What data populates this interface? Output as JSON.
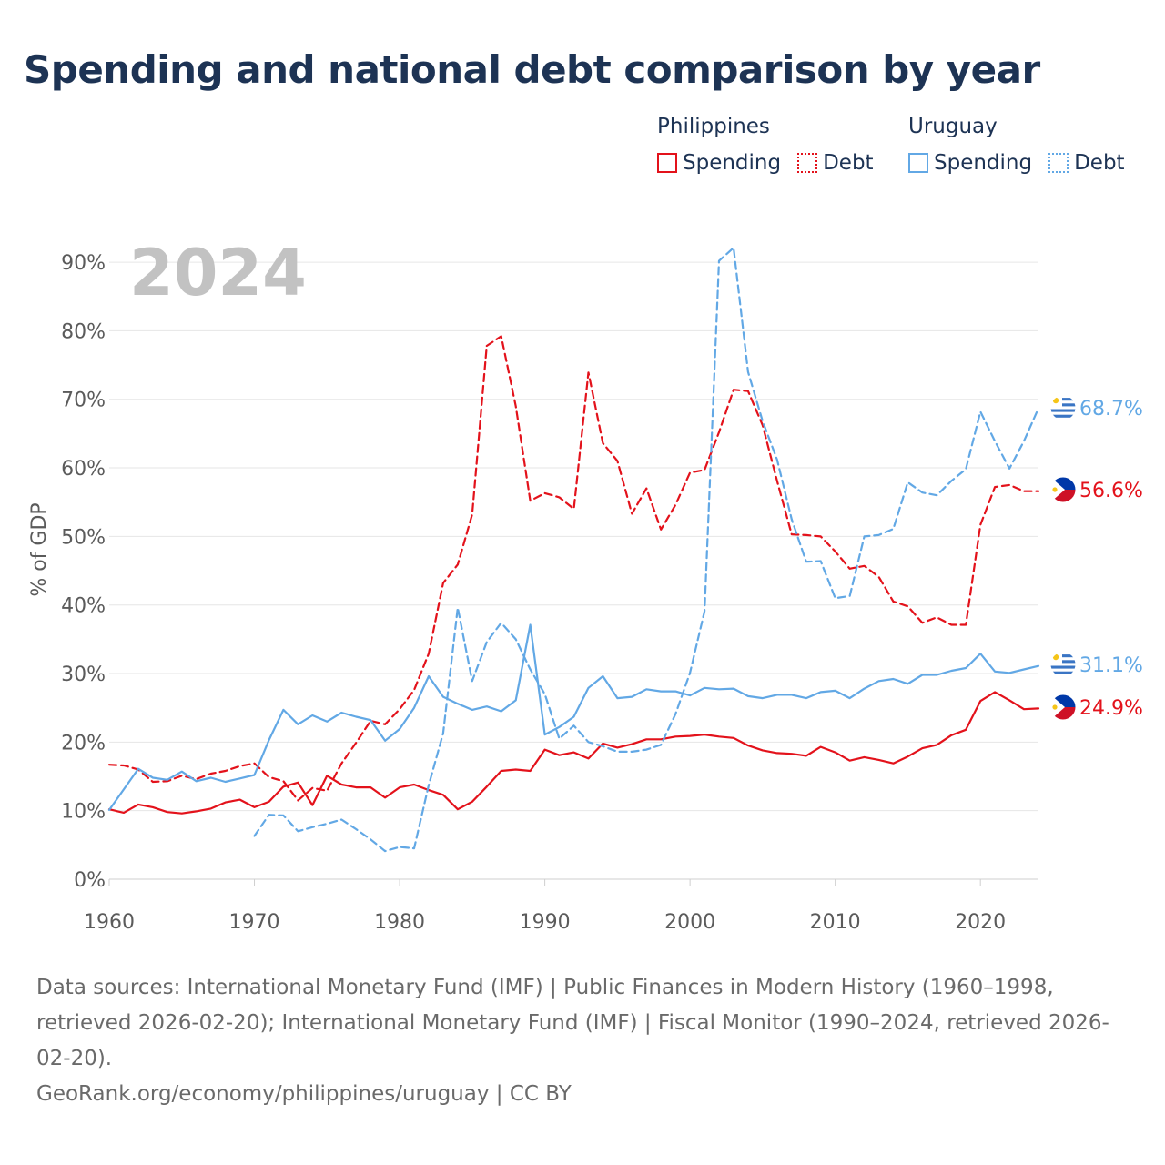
{
  "header": {
    "title": "Spending and national debt comparison by year"
  },
  "legend": {
    "groups": [
      {
        "name": "Philippines",
        "spending_label": "Spending",
        "debt_label": "Debt"
      },
      {
        "name": "Uruguay",
        "spending_label": "Spending",
        "debt_label": "Debt"
      }
    ]
  },
  "footer": {
    "sources": "Data sources: International Monetary Fund (IMF) | Public Finances in Modern History (1960–1998, retrieved 2026-02-20); International Monetary Fund (IMF) | Fiscal Monitor (1990–2024, retrieved 2026-02-20).",
    "credit": "GeoRank.org/economy/philippines/uruguay | CC BY"
  },
  "colors": {
    "philippines": "#e3121b",
    "uruguay": "#62a8e5",
    "grid": "#e6e6e6",
    "watermark": "#c2c2c2"
  },
  "chart_data": {
    "type": "line",
    "title": "Spending and national debt comparison by year",
    "year_label": "2024",
    "xlabel": "",
    "ylabel": "% of GDP",
    "xlim": [
      1960,
      2024
    ],
    "ylim": [
      0,
      92
    ],
    "x_ticks": [
      1960,
      1970,
      1980,
      1990,
      2000,
      2010,
      2020
    ],
    "y_ticks": [
      0,
      10,
      20,
      30,
      40,
      50,
      60,
      70,
      80,
      90
    ],
    "y_tick_labels": [
      "0%",
      "10%",
      "20%",
      "30%",
      "40%",
      "50%",
      "60%",
      "70%",
      "80%",
      "90%"
    ],
    "series": [
      {
        "name": "Philippines Spending",
        "country": "Philippines",
        "metric": "Spending",
        "color": "#e3121b",
        "dash": "solid",
        "end_label": "24.9%",
        "start_year": 1960,
        "values": [
          10.2,
          9.7,
          10.9,
          10.5,
          9.8,
          9.6,
          9.9,
          10.3,
          11.2,
          11.6,
          10.5,
          11.3,
          13.5,
          14.1,
          10.8,
          15.1,
          13.8,
          13.4,
          13.4,
          11.9,
          13.4,
          13.8,
          13.0,
          12.3,
          10.2,
          11.3,
          13.5,
          15.8,
          16.0,
          15.8,
          18.9,
          18.1,
          18.5,
          17.6,
          19.8,
          19.2,
          19.7,
          20.4,
          20.4,
          20.8,
          20.9,
          21.1,
          20.8,
          20.6,
          19.5,
          18.8,
          18.4,
          18.3,
          18.0,
          19.3,
          18.5,
          17.3,
          17.8,
          17.4,
          16.9,
          17.9,
          19.1,
          19.6,
          21.0,
          21.8,
          26.0,
          27.3,
          26.1,
          24.8,
          24.9
        ]
      },
      {
        "name": "Philippines Debt",
        "country": "Philippines",
        "metric": "Debt",
        "color": "#e3121b",
        "dash": "dashed",
        "end_label": "56.6%",
        "start_year": 1960,
        "values": [
          16.7,
          16.6,
          16.0,
          14.2,
          14.3,
          15.1,
          14.6,
          15.4,
          15.8,
          16.5,
          16.9,
          14.9,
          14.3,
          11.5,
          13.3,
          12.9,
          16.9,
          19.9,
          23.1,
          22.6,
          24.8,
          27.6,
          32.9,
          43.2,
          45.9,
          53.2,
          77.8,
          79.2,
          69.0,
          55.2,
          56.3,
          55.7,
          54.0,
          73.9,
          63.6,
          61.0,
          53.3,
          57.0,
          51.0,
          54.6,
          59.3,
          59.7,
          65.2,
          71.4,
          71.2,
          66.2,
          58.1,
          50.3,
          50.2,
          50.0,
          47.8,
          45.3,
          45.7,
          44.1,
          40.5,
          39.8,
          37.4,
          38.2,
          37.1,
          37.1,
          51.7,
          57.2,
          57.5,
          56.6,
          56.6
        ]
      },
      {
        "name": "Uruguay Spending",
        "country": "Uruguay",
        "metric": "Spending",
        "color": "#62a8e5",
        "dash": "solid",
        "end_label": "31.1%",
        "start_year": 1960,
        "values": [
          10.1,
          13.1,
          16.1,
          14.8,
          14.5,
          15.7,
          14.3,
          14.8,
          14.2,
          14.7,
          15.2,
          20.3,
          24.7,
          22.6,
          23.9,
          23.0,
          24.3,
          23.7,
          23.2,
          20.2,
          21.9,
          25.0,
          29.6,
          26.6,
          25.6,
          24.7,
          25.2,
          24.5,
          26.1,
          37.1,
          21.1,
          22.2,
          23.7,
          27.9,
          29.6,
          26.4,
          26.6,
          27.7,
          27.4,
          27.4,
          26.8,
          27.9,
          27.7,
          27.8,
          26.7,
          26.4,
          26.9,
          26.9,
          26.4,
          27.3,
          27.5,
          26.4,
          27.8,
          28.9,
          29.2,
          28.5,
          29.8,
          29.8,
          30.4,
          30.8,
          32.9,
          30.3,
          30.1,
          30.6,
          31.1
        ]
      },
      {
        "name": "Uruguay Debt",
        "country": "Uruguay",
        "metric": "Debt",
        "color": "#62a8e5",
        "dash": "dashed",
        "end_label": "68.7%",
        "start_year": 1970,
        "values": [
          6.3,
          9.4,
          9.3,
          7.0,
          7.6,
          8.1,
          8.7,
          7.3,
          5.8,
          4.1,
          4.7,
          4.5,
          13.7,
          21.3,
          39.6,
          28.9,
          34.6,
          37.4,
          35.0,
          30.6,
          27.0,
          20.5,
          22.4,
          20.0,
          19.4,
          18.6,
          18.6,
          18.9,
          19.6,
          24.1,
          30.1,
          39.1,
          90.2,
          92.1,
          74.0,
          66.8,
          61.2,
          52.5,
          46.3,
          46.4,
          41.0,
          41.3,
          50.0,
          50.2,
          51.1,
          57.9,
          56.4,
          56.0,
          58.1,
          59.8,
          68.2,
          63.9,
          59.9,
          63.9,
          68.7
        ]
      }
    ]
  }
}
